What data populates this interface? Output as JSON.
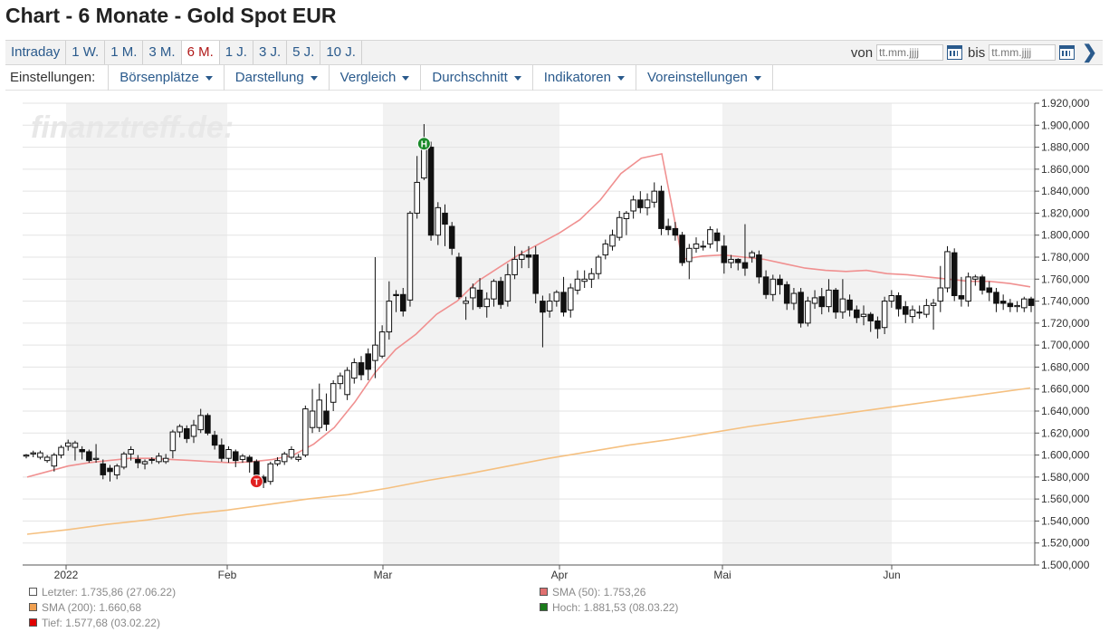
{
  "header": {
    "title": "Chart - 6 Monate - Gold Spot EUR"
  },
  "periods": [
    {
      "label": "Intraday",
      "active": false
    },
    {
      "label": "1 W.",
      "active": false
    },
    {
      "label": "1 M.",
      "active": false
    },
    {
      "label": "3 M.",
      "active": false
    },
    {
      "label": "6 M.",
      "active": true
    },
    {
      "label": "1 J.",
      "active": false
    },
    {
      "label": "3 J.",
      "active": false
    },
    {
      "label": "5 J.",
      "active": false
    },
    {
      "label": "10 J.",
      "active": false
    }
  ],
  "daterange": {
    "from_label": "von",
    "from_placeholder": "tt.mm.jjjj",
    "to_label": "bis",
    "to_placeholder": "tt.mm.jjjj"
  },
  "settings": {
    "label": "Einstellungen:",
    "menus": [
      "Börsenplätze",
      "Darstellung",
      "Vergleich",
      "Durchschnitt",
      "Indikatoren",
      "Voreinstellungen"
    ]
  },
  "chart_data": {
    "type": "candlestick",
    "watermark": "finanztreff.de:",
    "ylim": [
      1500,
      1920
    ],
    "ytick_step": 20,
    "y_tick_format": "de-DE, 3 decimals",
    "x_month_labels": [
      "2022",
      "Feb",
      "Mar",
      "Apr",
      "Mai",
      "Jun"
    ],
    "period_start": "2021-12-27",
    "period_end": "2022-06-27",
    "candles": [
      [
        1599,
        1600,
        1597,
        1601
      ],
      [
        1601,
        1602,
        1598,
        1604
      ],
      [
        1598,
        1602,
        1596,
        1604
      ],
      [
        1595,
        1598,
        1593,
        1600
      ],
      [
        1590,
        1600,
        1585,
        1602
      ],
      [
        1600,
        1607,
        1597,
        1609
      ],
      [
        1608,
        1611,
        1604,
        1614
      ],
      [
        1607,
        1611,
        1595,
        1613
      ],
      [
        1605,
        1603,
        1596,
        1608
      ],
      [
        1603,
        1595,
        1593,
        1605
      ],
      [
        1596,
        1597,
        1593,
        1610
      ],
      [
        1592,
        1582,
        1578,
        1596
      ],
      [
        1588,
        1585,
        1576,
        1591
      ],
      [
        1582,
        1590,
        1578,
        1592
      ],
      [
        1589,
        1601,
        1587,
        1603
      ],
      [
        1601,
        1605,
        1595,
        1608
      ],
      [
        1596,
        1593,
        1588,
        1600
      ],
      [
        1592,
        1594,
        1587,
        1596
      ],
      [
        1596,
        1596,
        1592,
        1598
      ],
      [
        1594,
        1599,
        1592,
        1602
      ],
      [
        1594,
        1597,
        1592,
        1601
      ],
      [
        1604,
        1621,
        1597,
        1623
      ],
      [
        1621,
        1626,
        1616,
        1628
      ],
      [
        1624,
        1615,
        1611,
        1627
      ],
      [
        1617,
        1627,
        1611,
        1632
      ],
      [
        1623,
        1636,
        1620,
        1642
      ],
      [
        1636,
        1620,
        1618,
        1638
      ],
      [
        1618,
        1609,
        1605,
        1622
      ],
      [
        1609,
        1597,
        1594,
        1615
      ],
      [
        1597,
        1605,
        1593,
        1608
      ],
      [
        1603,
        1595,
        1589,
        1605
      ],
      [
        1596,
        1599,
        1593,
        1601
      ],
      [
        1598,
        1594,
        1584,
        1600
      ],
      [
        1594,
        1580,
        1578,
        1596
      ],
      [
        1580,
        1575,
        1570,
        1582
      ],
      [
        1576,
        1592,
        1573,
        1594
      ],
      [
        1592,
        1595,
        1590,
        1598
      ],
      [
        1594,
        1601,
        1591,
        1603
      ],
      [
        1598,
        1605,
        1596,
        1608
      ],
      [
        1596,
        1598,
        1594,
        1601
      ],
      [
        1600,
        1642,
        1598,
        1645
      ],
      [
        1625,
        1640,
        1620,
        1660
      ],
      [
        1625,
        1650,
        1621,
        1665
      ],
      [
        1640,
        1628,
        1622,
        1656
      ],
      [
        1648,
        1665,
        1640,
        1668
      ],
      [
        1665,
        1672,
        1660,
        1675
      ],
      [
        1655,
        1677,
        1650,
        1680
      ],
      [
        1670,
        1684,
        1665,
        1688
      ],
      [
        1684,
        1673,
        1668,
        1690
      ],
      [
        1692,
        1678,
        1668,
        1697
      ],
      [
        1686,
        1700,
        1670,
        1780
      ],
      [
        1690,
        1712,
        1688,
        1718
      ],
      [
        1712,
        1740,
        1705,
        1758
      ],
      [
        1746,
        1745,
        1730,
        1750
      ],
      [
        1746,
        1731,
        1726,
        1752
      ],
      [
        1741,
        1820,
        1735,
        1822
      ],
      [
        1820,
        1848,
        1815,
        1872
      ],
      [
        1852,
        1881,
        1850,
        1901
      ],
      [
        1880,
        1800,
        1795,
        1885
      ],
      [
        1800,
        1825,
        1791,
        1830
      ],
      [
        1820,
        1810,
        1790,
        1828
      ],
      [
        1808,
        1788,
        1782,
        1812
      ],
      [
        1780,
        1744,
        1742,
        1784
      ],
      [
        1738,
        1740,
        1723,
        1744
      ],
      [
        1743,
        1752,
        1732,
        1756
      ],
      [
        1750,
        1735,
        1733,
        1761
      ],
      [
        1735,
        1742,
        1725,
        1748
      ],
      [
        1742,
        1758,
        1735,
        1760
      ],
      [
        1758,
        1737,
        1733,
        1762
      ],
      [
        1740,
        1764,
        1735,
        1774
      ],
      [
        1764,
        1778,
        1760,
        1790
      ],
      [
        1778,
        1782,
        1770,
        1786
      ],
      [
        1782,
        1780,
        1770,
        1790
      ],
      [
        1782,
        1747,
        1738,
        1790
      ],
      [
        1740,
        1730,
        1698,
        1745
      ],
      [
        1731,
        1740,
        1725,
        1747
      ],
      [
        1740,
        1748,
        1735,
        1750
      ],
      [
        1748,
        1730,
        1726,
        1762
      ],
      [
        1732,
        1752,
        1725,
        1756
      ],
      [
        1750,
        1760,
        1746,
        1768
      ],
      [
        1758,
        1760,
        1752,
        1768
      ],
      [
        1760,
        1765,
        1752,
        1770
      ],
      [
        1765,
        1780,
        1760,
        1782
      ],
      [
        1782,
        1792,
        1778,
        1796
      ],
      [
        1790,
        1800,
        1786,
        1805
      ],
      [
        1798,
        1816,
        1795,
        1822
      ],
      [
        1815,
        1820,
        1800,
        1822
      ],
      [
        1822,
        1832,
        1815,
        1836
      ],
      [
        1832,
        1825,
        1820,
        1840
      ],
      [
        1825,
        1832,
        1818,
        1838
      ],
      [
        1830,
        1840,
        1825,
        1848
      ],
      [
        1840,
        1806,
        1800,
        1845
      ],
      [
        1808,
        1805,
        1800,
        1815
      ],
      [
        1806,
        1800,
        1795,
        1812
      ],
      [
        1800,
        1775,
        1772,
        1803
      ],
      [
        1776,
        1788,
        1760,
        1792
      ],
      [
        1788,
        1792,
        1784,
        1798
      ],
      [
        1790,
        1790,
        1786,
        1795
      ],
      [
        1792,
        1805,
        1788,
        1808
      ],
      [
        1802,
        1795,
        1785,
        1806
      ],
      [
        1790,
        1775,
        1765,
        1800
      ],
      [
        1775,
        1778,
        1770,
        1782
      ],
      [
        1778,
        1775,
        1768,
        1779
      ],
      [
        1775,
        1770,
        1763,
        1810
      ],
      [
        1780,
        1784,
        1775,
        1786
      ],
      [
        1782,
        1762,
        1756,
        1786
      ],
      [
        1762,
        1746,
        1742,
        1768
      ],
      [
        1746,
        1760,
        1740,
        1764
      ],
      [
        1760,
        1755,
        1746,
        1764
      ],
      [
        1755,
        1738,
        1732,
        1758
      ],
      [
        1738,
        1747,
        1732,
        1752
      ],
      [
        1748,
        1720,
        1716,
        1752
      ],
      [
        1720,
        1740,
        1717,
        1744
      ],
      [
        1738,
        1743,
        1733,
        1750
      ],
      [
        1744,
        1735,
        1728,
        1752
      ],
      [
        1735,
        1750,
        1730,
        1760
      ],
      [
        1750,
        1730,
        1724,
        1752
      ],
      [
        1730,
        1742,
        1724,
        1760
      ],
      [
        1741,
        1732,
        1726,
        1746
      ],
      [
        1732,
        1725,
        1720,
        1736
      ],
      [
        1726,
        1728,
        1718,
        1736
      ],
      [
        1728,
        1722,
        1712,
        1730
      ],
      [
        1722,
        1715,
        1706,
        1726
      ],
      [
        1716,
        1740,
        1710,
        1744
      ],
      [
        1740,
        1745,
        1734,
        1750
      ],
      [
        1745,
        1733,
        1726,
        1748
      ],
      [
        1735,
        1728,
        1720,
        1740
      ],
      [
        1726,
        1732,
        1720,
        1736
      ],
      [
        1730,
        1730,
        1724,
        1736
      ],
      [
        1728,
        1736,
        1725,
        1742
      ],
      [
        1736,
        1738,
        1714,
        1742
      ],
      [
        1740,
        1752,
        1730,
        1772
      ],
      [
        1752,
        1785,
        1748,
        1790
      ],
      [
        1784,
        1745,
        1740,
        1788
      ],
      [
        1745,
        1742,
        1735,
        1762
      ],
      [
        1740,
        1762,
        1735,
        1766
      ],
      [
        1760,
        1762,
        1754,
        1764
      ],
      [
        1762,
        1750,
        1746,
        1764
      ],
      [
        1752,
        1748,
        1740,
        1758
      ],
      [
        1748,
        1738,
        1730,
        1752
      ],
      [
        1740,
        1738,
        1732,
        1746
      ],
      [
        1738,
        1735,
        1730,
        1742
      ],
      [
        1735,
        1736,
        1730,
        1740
      ],
      [
        1734,
        1742,
        1730,
        1744
      ],
      [
        1742,
        1736,
        1730,
        1744
      ]
    ],
    "sma50": [
      1580,
      1585,
      1590,
      1593,
      1595,
      1597,
      1597,
      1596,
      1595,
      1594,
      1593,
      1594,
      1596,
      1600,
      1610,
      1625,
      1648,
      1675,
      1696,
      1710,
      1728,
      1740,
      1758,
      1770,
      1782,
      1792,
      1802,
      1814,
      1832,
      1856,
      1870,
      1874,
      1778,
      1781,
      1782,
      1780,
      1778,
      1774,
      1770,
      1768,
      1767,
      1768,
      1765,
      1764,
      1762,
      1760,
      1758,
      1758,
      1756,
      1753
    ],
    "sma200": [
      1528,
      1532,
      1537,
      1541,
      1546,
      1550,
      1555,
      1560,
      1564,
      1570,
      1577,
      1583,
      1590,
      1597,
      1603,
      1609,
      1614,
      1620,
      1626,
      1631,
      1636,
      1641,
      1646,
      1651,
      1656,
      1661
    ],
    "markers": {
      "high": {
        "label": "H",
        "value": 1881.53
      },
      "low": {
        "label": "T",
        "value": 1577.68
      }
    },
    "legend": [
      {
        "label": "Letzter: 1.735,86 (27.06.22)",
        "color": "#ffffff"
      },
      {
        "label": "SMA (200): 1.660,68",
        "color": "#f0a050"
      },
      {
        "label": "Tief: 1.577,68 (03.02.22)",
        "color": "#e00000"
      },
      {
        "label": "SMA (50): 1.753,26",
        "color": "#e07070"
      },
      {
        "label": "Hoch: 1.881,53 (08.03.22)",
        "color": "#1a7a1a"
      }
    ],
    "colors": {
      "sma50": "#f09090",
      "sma200": "#f5c080",
      "high_marker": "#1a8a2a",
      "low_marker": "#e02020",
      "band": "#f2f2f2"
    }
  }
}
